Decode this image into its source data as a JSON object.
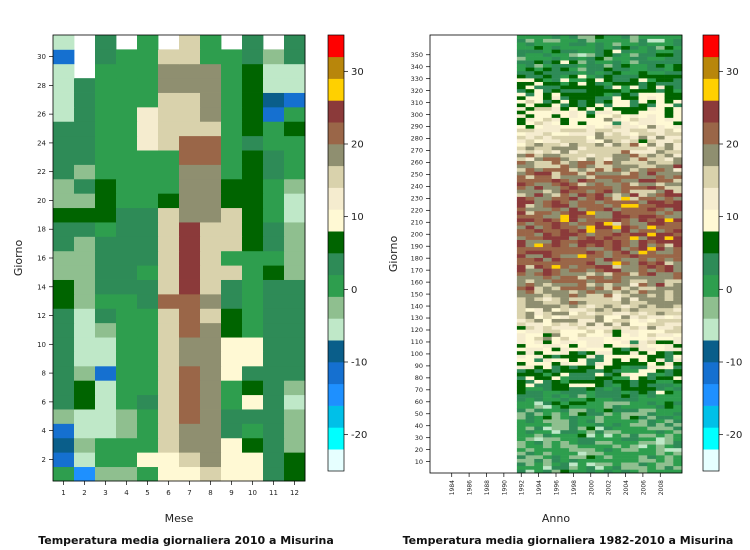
{
  "palette": [
    "#e6ffff",
    "#00ffff",
    "#00c0e8",
    "#1e90ff",
    "#1570d0",
    "#0a5e8a",
    "#bfe8c8",
    "#8fbf8f",
    "#2e9e4e",
    "#2e8b57",
    "#006400",
    "#fff9d4",
    "#f5eccf",
    "#d9d2ac",
    "#8f8f70",
    "#9a6648",
    "#8b3a3a",
    "#ffd000",
    "#b8860b",
    "#ff0000"
  ],
  "colorbar": {
    "breaks": [
      -25,
      -22.5,
      -20,
      -17.5,
      -15,
      -12.5,
      -10,
      -7.5,
      -5,
      -2.5,
      0,
      2.5,
      5,
      7.5,
      10,
      12.5,
      15,
      17.5,
      20,
      22.5,
      25,
      27.5,
      30,
      32.5,
      35
    ],
    "tick_labels": [
      "-20",
      "-10",
      "0",
      "10",
      "20",
      "30"
    ],
    "tick_values": [
      -20,
      -10,
      0,
      10,
      20,
      30
    ]
  },
  "chart_data": [
    {
      "type": "heatmap",
      "title": "Temperatura media giornaliera 2010 a Misurina",
      "xlabel": "Mese",
      "ylabel": "Giorno",
      "x_ticks": [
        "1",
        "2",
        "3",
        "4",
        "5",
        "6",
        "7",
        "8",
        "9",
        "10",
        "11",
        "12"
      ],
      "y_ticks": [
        "2",
        "4",
        "6",
        "8",
        "10",
        "12",
        "14",
        "16",
        "18",
        "20",
        "22",
        "24",
        "26",
        "28",
        "30"
      ],
      "y_range": [
        1,
        31
      ],
      "missing_cells": [
        [
          2,
          29
        ],
        [
          2,
          30
        ],
        [
          2,
          31
        ],
        [
          4,
          31
        ],
        [
          6,
          31
        ],
        [
          9,
          31
        ],
        [
          11,
          31
        ]
      ],
      "row_values": [
        [
          -4,
          -17,
          -6,
          -6,
          -3,
          4,
          3,
          8,
          3,
          4,
          -2,
          1
        ],
        [
          -14,
          -9,
          -3,
          -4,
          4,
          4,
          9,
          11,
          3,
          4,
          -2,
          1
        ],
        [
          -11,
          -6,
          -3,
          -3,
          -4,
          9,
          11,
          11,
          3,
          1,
          -2,
          -6
        ],
        [
          -15,
          -10,
          -10,
          -6,
          -3,
          9,
          11,
          11,
          -2,
          -3,
          -2,
          -6
        ],
        [
          -7,
          -10,
          -8,
          -6,
          -3,
          9,
          14,
          10,
          -2,
          -2,
          -1,
          -7
        ],
        [
          -1,
          1,
          -10,
          -3,
          -2,
          9,
          14,
          10,
          -4,
          4,
          -2,
          -10
        ],
        [
          -1,
          1,
          -10,
          -3,
          -4,
          9,
          14,
          10,
          -3,
          2,
          -1,
          -6
        ],
        [
          -1,
          -7,
          -15,
          -3,
          -4,
          9,
          14,
          10,
          3,
          -2,
          -1,
          -1
        ],
        [
          -1,
          -10,
          -8,
          -3,
          -3,
          9,
          10,
          10,
          3,
          3,
          -1,
          -1
        ],
        [
          -1,
          -10,
          -10,
          -3,
          -3,
          9,
          10,
          10,
          3,
          3,
          -1,
          -1
        ],
        [
          -1,
          -8,
          -7,
          -3,
          -4,
          9,
          13,
          10,
          1,
          -3,
          -1,
          -1
        ],
        [
          -1,
          -9,
          -1,
          -3,
          -4,
          9,
          13,
          9,
          1,
          -3,
          -1,
          -1
        ],
        [
          0,
          -7,
          -5,
          -3,
          -2,
          14,
          14,
          10,
          -2,
          -3,
          -1,
          -1
        ],
        [
          0,
          -7,
          -2,
          -1,
          -1,
          9,
          17,
          9,
          -2,
          -3,
          -1,
          -1
        ],
        [
          -7,
          -7,
          -2,
          -1,
          -3,
          9,
          17,
          9,
          9,
          -3,
          0,
          -6
        ],
        [
          -7,
          -7,
          -2,
          -1,
          -1,
          9,
          16,
          9,
          -5,
          -3,
          -4,
          -6
        ],
        [
          -1,
          -7,
          -1,
          -2,
          -1,
          9,
          16,
          9,
          9,
          1,
          -1,
          -6
        ],
        [
          -1,
          -1,
          -3,
          -2,
          -2,
          9,
          16,
          9,
          9,
          1,
          -1,
          -6
        ],
        [
          0,
          0,
          0,
          -2,
          -2,
          9,
          10,
          10,
          9,
          1,
          -3,
          -8
        ],
        [
          -7,
          -7,
          0,
          -3,
          -4,
          0,
          10,
          10,
          0,
          1,
          -3,
          -8
        ],
        [
          -6,
          -2,
          0,
          -3,
          -3,
          -4,
          10,
          10,
          0,
          1,
          -3,
          -7
        ],
        [
          -1,
          -7,
          -3,
          -3,
          -5,
          -5,
          12,
          12,
          -3,
          1,
          -1,
          -3
        ],
        [
          -1,
          -2,
          -3,
          -3,
          -5,
          -5,
          14,
          14,
          -3,
          0,
          -1,
          -3
        ],
        [
          -1,
          -2,
          -3,
          -3,
          7,
          9,
          14,
          14,
          -4,
          -2,
          -3,
          -3
        ],
        [
          -1,
          -2,
          -3,
          -3,
          7,
          9,
          9,
          9,
          -3,
          0,
          -3,
          0
        ],
        [
          -9,
          -2,
          -3,
          -3,
          7,
          9,
          9,
          12,
          -3,
          0,
          -15,
          -4
        ],
        [
          -9,
          -2,
          -3,
          -3,
          -4,
          9,
          9,
          12,
          -3,
          0,
          -12,
          -14
        ],
        [
          -9,
          -2,
          -3,
          -3,
          -4,
          12,
          12,
          12,
          -3,
          0,
          -9,
          -10
        ],
        [
          -9,
          -2,
          -4,
          -4,
          -3,
          12,
          12,
          12,
          -3,
          0,
          -9,
          -10
        ],
        [
          -14,
          0,
          -1,
          -3,
          -4,
          9,
          9,
          -4,
          -3,
          -1,
          -7,
          -2
        ],
        [
          -9,
          0,
          -1,
          0,
          -4,
          9,
          9,
          -4,
          0,
          -1,
          -7,
          -2
        ]
      ]
    },
    {
      "type": "heatmap",
      "title": "Temperatura media giornaliera 1982-2010 a Misurina",
      "xlabel": "Anno",
      "ylabel": "Giorno",
      "x_ticks": [
        "1984",
        "1986",
        "1988",
        "1990",
        "1992",
        "1994",
        "1996",
        "1998",
        "2000",
        "2002",
        "2004",
        "2006",
        "2008"
      ],
      "y_ticks": [
        "10",
        "20",
        "30",
        "40",
        "50",
        "60",
        "70",
        "80",
        "90",
        "100",
        "110",
        "120",
        "130",
        "140",
        "150",
        "160",
        "170",
        "180",
        "190",
        "200",
        "210",
        "220",
        "230",
        "240",
        "250",
        "260",
        "270",
        "280",
        "290",
        "300",
        "310",
        "320",
        "330",
        "340",
        "350"
      ],
      "year_range": [
        1982,
        2010
      ],
      "data_start_year": 1992,
      "day_range": [
        1,
        366
      ]
    }
  ]
}
